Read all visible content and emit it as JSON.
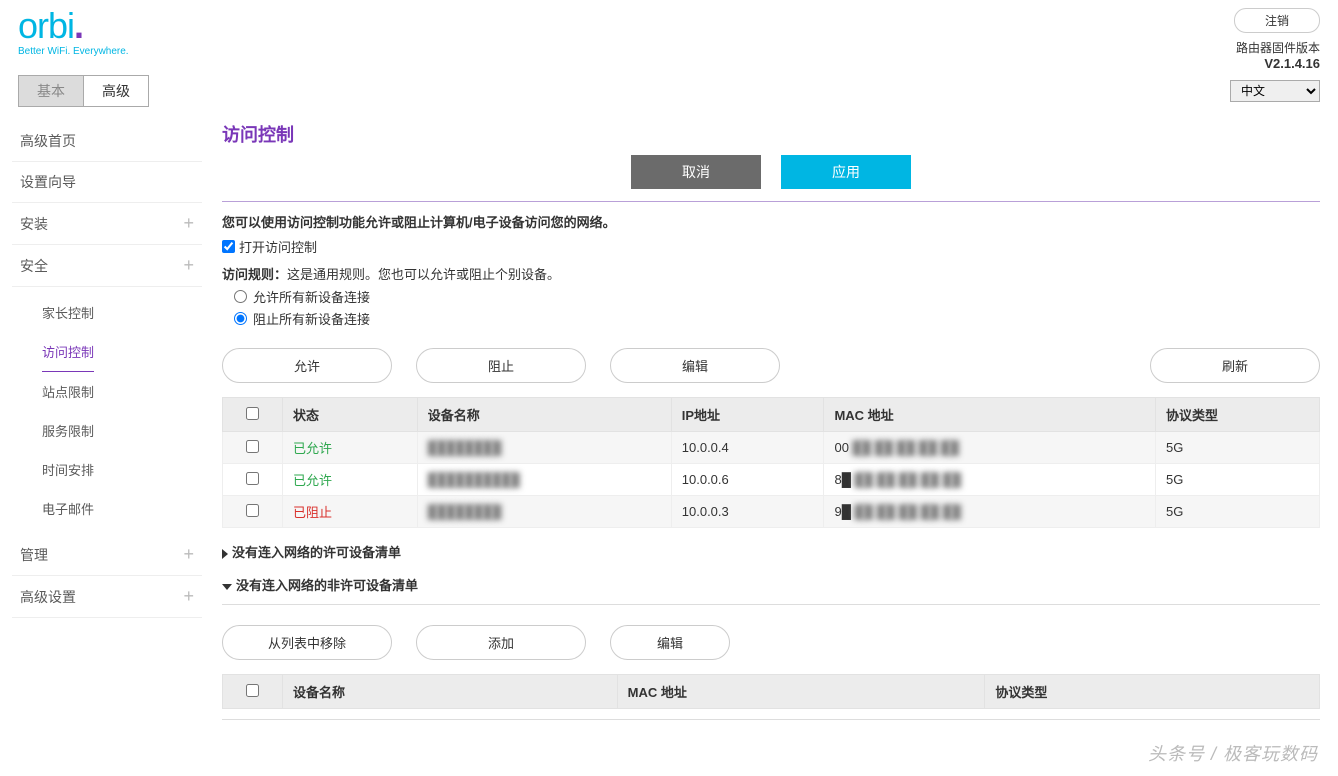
{
  "header": {
    "logo_main": "orbi",
    "logo_tagline": "Better WiFi. Everywhere.",
    "logout": "注销",
    "fw_label": "路由器固件版本",
    "fw_version": "V2.1.4.16",
    "lang_selected": "中文"
  },
  "tabs": {
    "basic": "基本",
    "advanced": "高级"
  },
  "sidebar": {
    "adv_home": "高级首页",
    "setup_wizard": "设置向导",
    "install": "安装",
    "security": "安全",
    "security_children": {
      "parental": "家长控制",
      "access": "访问控制",
      "site": "站点限制",
      "service": "服务限制",
      "schedule": "时间安排",
      "email": "电子邮件"
    },
    "manage": "管理",
    "adv_settings": "高级设置"
  },
  "page": {
    "title": "访问控制",
    "cancel": "取消",
    "apply": "应用",
    "desc": "您可以使用访问控制功能允许或阻止计算机/电子设备访问您的网络。",
    "enable_label": "打开访问控制",
    "rule_prefix": "访问规则：",
    "rule_text": "这是通用规则。您也可以允许或阻止个别设备。",
    "radio_allow": "允许所有新设备连接",
    "radio_block": "阻止所有新设备连接",
    "btn_allow": "允许",
    "btn_block": "阻止",
    "btn_edit": "编辑",
    "btn_refresh": "刷新",
    "btn_remove": "从列表中移除",
    "btn_add": "添加"
  },
  "table1": {
    "cols": {
      "status": "状态",
      "name": "设备名称",
      "ip": "IP地址",
      "mac": "MAC 地址",
      "proto": "协议类型"
    },
    "rows": [
      {
        "status": "已允许",
        "status_class": "status-allow",
        "name": "████████",
        "ip": "10.0.0.4",
        "mac": "00:██:██:██:██:██",
        "proto": "5G"
      },
      {
        "status": "已允许",
        "status_class": "status-allow",
        "name": "██████████",
        "ip": "10.0.0.6",
        "mac": "8█:██:██:██:██:██",
        "proto": "5G"
      },
      {
        "status": "已阻止",
        "status_class": "status-block",
        "name": "████████",
        "ip": "10.0.0.3",
        "mac": "9█:██:██:██:██:██",
        "proto": "5G"
      }
    ]
  },
  "collapse": {
    "allowed_offline": "没有连入网络的许可设备清单",
    "blocked_offline": "没有连入网络的非许可设备清单"
  },
  "table2": {
    "cols": {
      "name": "设备名称",
      "mac": "MAC 地址",
      "proto": "协议类型"
    }
  },
  "watermark": "头条号 / 极客玩数码"
}
